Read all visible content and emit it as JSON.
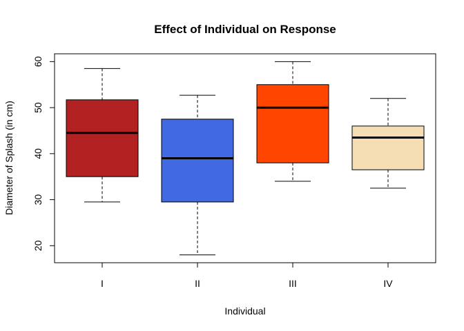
{
  "chart_data": {
    "type": "box",
    "title": "Effect of Individual on Response",
    "xlabel": "Individual",
    "ylabel": "Diameter of Splash (in cm)",
    "ylim": [
      16.3,
      61.7
    ],
    "yticks": [
      20,
      30,
      40,
      50,
      60
    ],
    "grid": false,
    "categories": [
      "I",
      "II",
      "III",
      "IV"
    ],
    "boxes": [
      {
        "category": "I",
        "min": 29.5,
        "q1": 35.0,
        "median": 44.5,
        "q3": 51.7,
        "max": 58.5,
        "color": "#b22222"
      },
      {
        "category": "II",
        "min": 18.0,
        "q1": 29.5,
        "median": 39.0,
        "q3": 47.5,
        "max": 52.7,
        "color": "#4169e1"
      },
      {
        "category": "III",
        "min": 34.0,
        "q1": 38.0,
        "median": 50.0,
        "q3": 55.0,
        "max": 60.0,
        "color": "#ff4500"
      },
      {
        "category": "IV",
        "min": 32.5,
        "q1": 36.5,
        "median": 43.5,
        "q3": 46.0,
        "max": 52.0,
        "color": "#f5deb3"
      }
    ]
  }
}
